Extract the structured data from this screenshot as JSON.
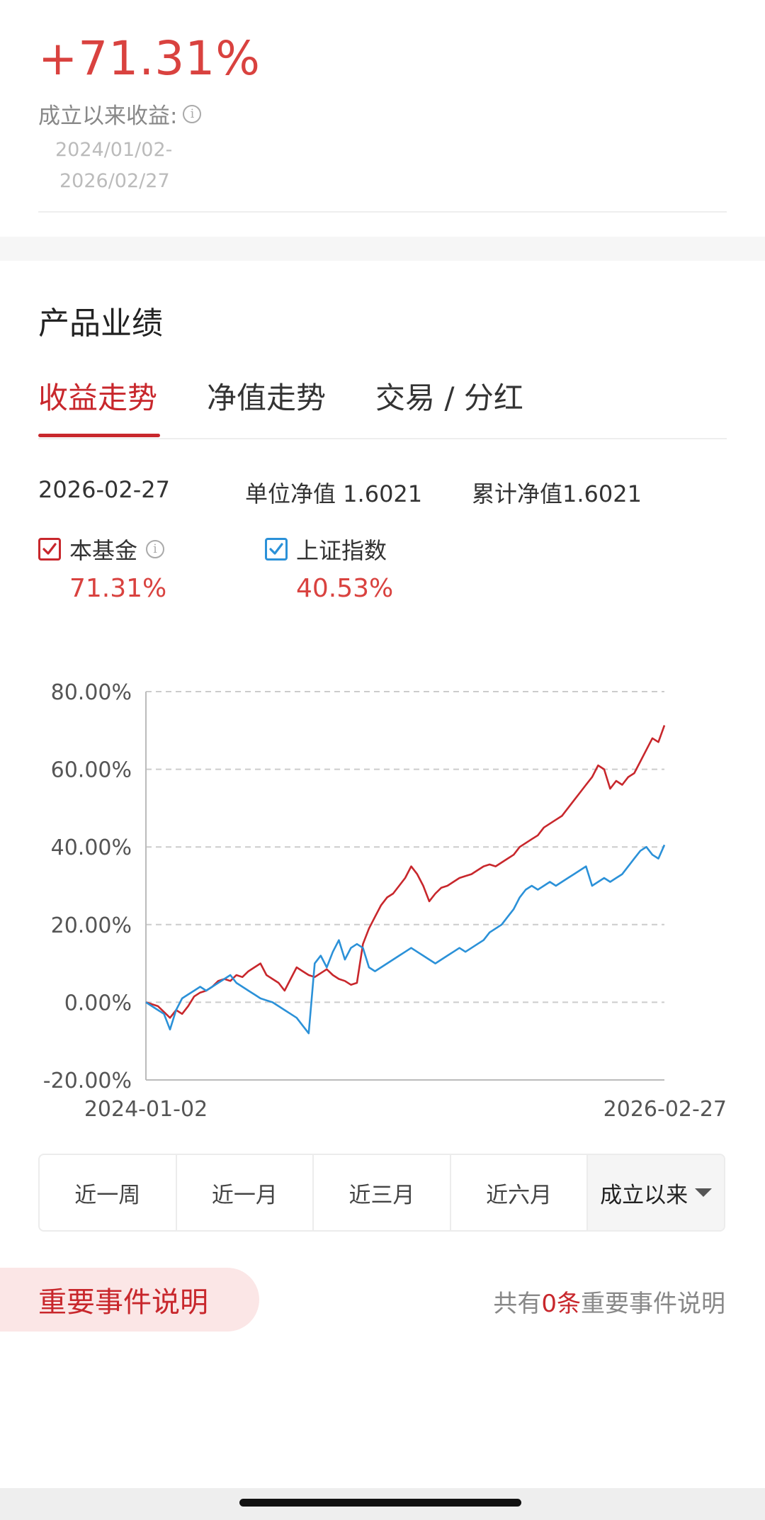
{
  "summary": {
    "total_return": "+71.31%",
    "since_label": "成立以来收益:",
    "date_start": "2024/01/02-",
    "date_end": "2026/02/27"
  },
  "section_title": "产品业绩",
  "tabs": [
    {
      "label": "收益走势",
      "active": true
    },
    {
      "label": "净值走势",
      "active": false
    },
    {
      "label": "交易 / 分红",
      "active": false
    }
  ],
  "info": {
    "date": "2026-02-27",
    "unit_nav": "单位净值 1.6021",
    "cum_nav": "累计净值1.6021"
  },
  "legend": [
    {
      "name": "本基金",
      "value": "71.31%",
      "color": "#c8272c",
      "checked": true
    },
    {
      "name": "上证指数",
      "value": "40.53%",
      "color": "#2b91d8",
      "checked": true
    }
  ],
  "chart_data": {
    "type": "line",
    "y_tick_labels": [
      "80.00%",
      "60.00%",
      "40.00%",
      "20.00%",
      "0.00%",
      "-20.00%"
    ],
    "ylim": [
      -20,
      80
    ],
    "x_tick_labels": [
      "2024-01-02",
      "2026-02-27"
    ],
    "grid": true,
    "series": [
      {
        "name": "本基金",
        "color": "#c8272c",
        "values": [
          0,
          -0.5,
          -1,
          -2.5,
          -4,
          -2,
          -3,
          -1,
          1.5,
          2.5,
          3,
          4,
          5.5,
          6,
          5.5,
          7,
          6.5,
          8,
          9,
          10,
          7,
          6,
          5,
          3,
          6,
          9,
          8,
          7,
          6.5,
          7.5,
          8.5,
          7,
          6,
          5.5,
          4.5,
          5,
          15,
          19,
          22,
          25,
          27,
          28,
          30,
          32,
          35,
          33,
          30,
          26,
          28,
          29.5,
          30,
          31,
          32,
          32.5,
          33,
          34,
          35,
          35.5,
          35,
          36,
          37,
          38,
          40,
          41,
          42,
          43,
          45,
          46,
          47,
          48,
          50,
          52,
          54,
          56,
          58,
          61,
          60,
          55,
          57,
          56,
          58,
          59,
          62,
          65,
          68,
          67,
          71.31
        ]
      },
      {
        "name": "上证指数",
        "color": "#2b91d8",
        "values": [
          0,
          -1,
          -2,
          -3,
          -7,
          -2,
          1,
          2,
          3,
          4,
          3,
          4,
          5,
          6,
          7,
          5,
          4,
          3,
          2,
          1,
          0.5,
          0,
          -1,
          -2,
          -3,
          -4,
          -6,
          -8,
          10,
          12,
          9,
          13,
          16,
          11,
          14,
          15,
          14,
          9,
          8,
          9,
          10,
          11,
          12,
          13,
          14,
          13,
          12,
          11,
          10,
          11,
          12,
          13,
          14,
          13,
          14,
          15,
          16,
          18,
          19,
          20,
          22,
          24,
          27,
          29,
          30,
          29,
          30,
          31,
          30,
          31,
          32,
          33,
          34,
          35,
          30,
          31,
          32,
          31,
          32,
          33,
          35,
          37,
          39,
          40,
          38,
          37,
          40.53
        ]
      }
    ]
  },
  "ranges": [
    "近一周",
    "近一月",
    "近三月",
    "近六月",
    "成立以来"
  ],
  "events": {
    "title": "重要事件说明",
    "prefix": "共有",
    "count": "0",
    "suffix_unit": "条",
    "suffix": "重要事件说明"
  }
}
